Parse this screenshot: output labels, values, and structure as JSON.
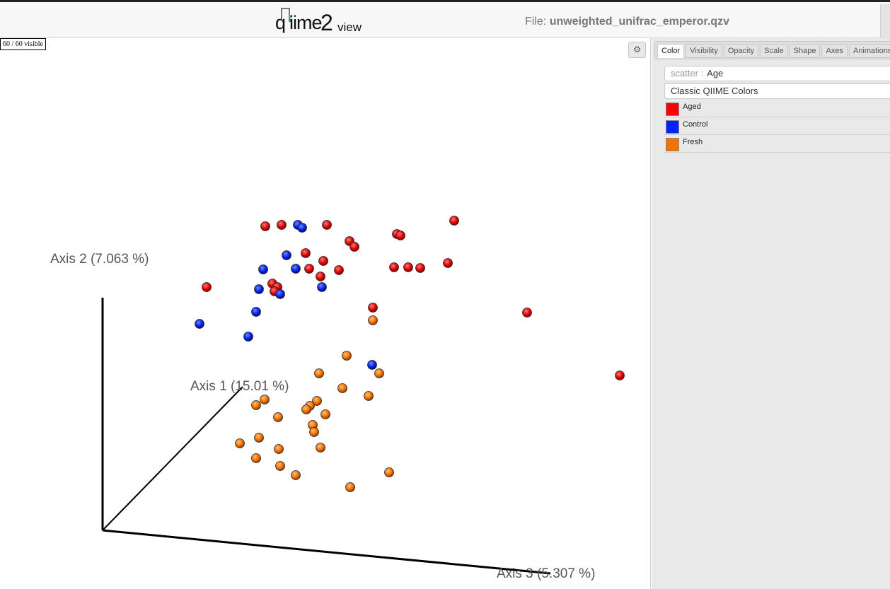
{
  "header": {
    "logo_text_q": "q",
    "logo_text_ime": "iime",
    "logo_text_2": "2",
    "logo_text_view": "view",
    "file_prefix": "File:",
    "file_name": "unweighted_unifrac_emperor.qzv"
  },
  "plot": {
    "visible_count": "60 / 60 visible",
    "settings_icon": "gear-icon",
    "axis_labels": {
      "axis1": "Axis 1 (15.01 %)",
      "axis2": "Axis 2 (7.063 %)",
      "axis3": "Axis 3 (5.307 %)"
    }
  },
  "panel": {
    "tabs": [
      "Color",
      "Visibility",
      "Opacity",
      "Scale",
      "Shape",
      "Axes",
      "Animations"
    ],
    "active_tab": "Color",
    "scatter_prefix": "scatter :",
    "scatter_value": "Age",
    "colormap": "Classic QIIME Colors",
    "legend": [
      {
        "label": "Aged",
        "color": "#ff0000"
      },
      {
        "label": "Control",
        "color": "#0000ff"
      },
      {
        "label": "Fresh",
        "color": "#f27304"
      }
    ]
  }
}
